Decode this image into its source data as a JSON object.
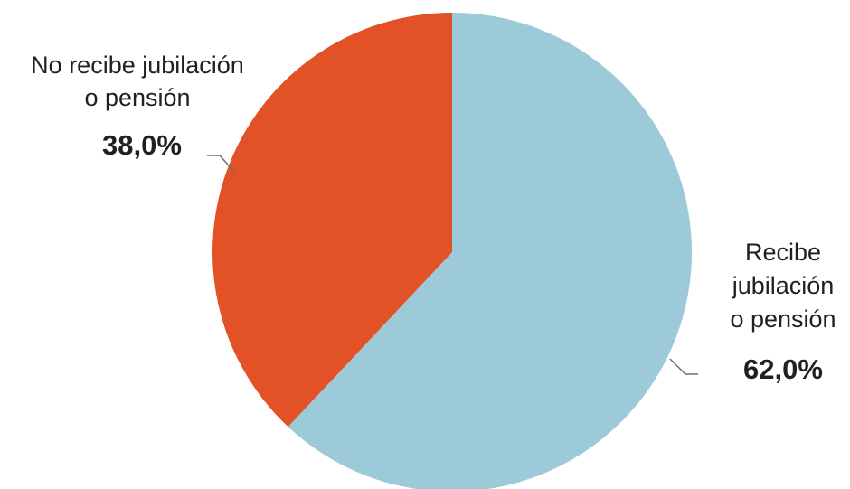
{
  "chart_data": {
    "type": "pie",
    "title": "",
    "slices": [
      {
        "label_lines": [
          "Recibe",
          "jubilación",
          "o pensión"
        ],
        "value": 62.0,
        "value_label": "62,0%",
        "color": "#9dcad8"
      },
      {
        "label_lines": [
          "No recibe jubilación",
          "o pensión"
        ],
        "value": 38.0,
        "value_label": "38,0%",
        "color": "#e35126"
      }
    ],
    "start_angle": "12 o'clock",
    "direction": "clockwise",
    "legend": "none (slice labels outside)"
  }
}
